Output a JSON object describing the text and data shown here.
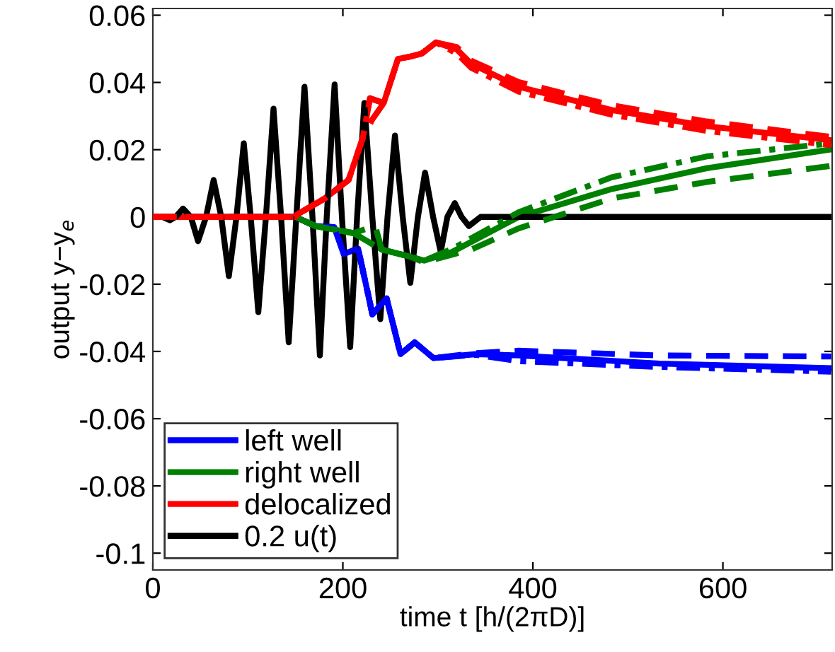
{
  "chart_data": {
    "type": "line",
    "xlabel": "time t [h/(2πD)]",
    "ylabel": "output y−y$_{e}$",
    "xlim": [
      0,
      715
    ],
    "ylim": [
      -0.105,
      0.062
    ],
    "xticks": [
      0,
      200,
      400,
      600
    ],
    "yticks": [
      -0.1,
      -0.08,
      -0.06,
      -0.04,
      -0.02,
      0,
      0.02,
      0.04,
      0.06
    ],
    "grid": false,
    "legend": "bottom left",
    "marker": "none",
    "series": [
      {
        "name": "left well",
        "color": "#0000ff",
        "line_style": "solid",
        "x": [
          0,
          150,
          171,
          191,
          201,
          216,
          228.5,
          231,
          246,
          260.7,
          275.6,
          295.5,
          340,
          385,
          533,
          714
        ],
        "values": [
          0,
          0,
          -0.0027,
          -0.003,
          -0.011,
          -0.0094,
          -0.0255,
          -0.029,
          -0.0242,
          -0.0408,
          -0.0373,
          -0.042,
          -0.0408,
          -0.0412,
          -0.0436,
          -0.045
        ]
      },
      {
        "name": null,
        "color": "#0000ff",
        "line_style": "dashed",
        "x": [
          0,
          150,
          171,
          191,
          201,
          216,
          228.5,
          231,
          246,
          260.7,
          275.6,
          295.5,
          340,
          385,
          533,
          714
        ],
        "values": [
          0,
          0,
          -0.0027,
          -0.003,
          -0.011,
          -0.0094,
          -0.0255,
          -0.029,
          -0.0242,
          -0.0408,
          -0.0373,
          -0.042,
          -0.0405,
          -0.0398,
          -0.0412,
          -0.0415
        ]
      },
      {
        "name": null,
        "color": "#0000ff",
        "line_style": "dashdot",
        "x": [
          0,
          150,
          171,
          191,
          201,
          216,
          228.5,
          231,
          246,
          260.7,
          275.6,
          295.5,
          340,
          385,
          533,
          714
        ],
        "values": [
          0,
          0,
          -0.0027,
          -0.003,
          -0.011,
          -0.0094,
          -0.0255,
          -0.029,
          -0.0242,
          -0.0408,
          -0.0373,
          -0.042,
          -0.041,
          -0.0429,
          -0.0446,
          -0.046
        ]
      },
      {
        "name": "right well",
        "color": "#008000",
        "line_style": "solid",
        "x": [
          0,
          150,
          171,
          211,
          241,
          270.6,
          285.5,
          315,
          385,
          483,
          583,
          714
        ],
        "values": [
          0,
          0,
          -0.0027,
          -0.0048,
          -0.0097,
          -0.0118,
          -0.013,
          -0.0104,
          0,
          0.0083,
          0.0145,
          0.0201
        ]
      },
      {
        "name": null,
        "color": "#008000",
        "line_style": "dashed",
        "x": [
          0,
          150,
          171,
          211,
          234,
          241,
          270.6,
          285.5,
          335,
          385,
          483,
          583,
          714
        ],
        "values": [
          0,
          0,
          -0.0027,
          -0.0048,
          -0.0027,
          -0.0097,
          -0.0118,
          -0.0135,
          -0.0097,
          -0.0034,
          0.0055,
          0.0104,
          0.0152
        ]
      },
      {
        "name": null,
        "color": "#008000",
        "line_style": "dashdot",
        "x": [
          0,
          150,
          171,
          211,
          241,
          270.6,
          285.5,
          315,
          385,
          483,
          583,
          714
        ],
        "values": [
          0,
          0,
          -0.0027,
          -0.0048,
          -0.0097,
          -0.0118,
          -0.013,
          -0.0095,
          0.0014,
          0.0118,
          0.018,
          0.0219
        ]
      },
      {
        "name": "delocalized",
        "color": "#ff0000",
        "line_style": "solid",
        "x": [
          0,
          150,
          151.7,
          181,
          206,
          221,
          228.5,
          243,
          258,
          271,
          283,
          298,
          320,
          335,
          385,
          483,
          583,
          714
        ],
        "values": [
          0,
          0,
          0.0007,
          0.0055,
          0.011,
          0.0235,
          0.0353,
          0.0339,
          0.047,
          0.0477,
          0.0486,
          0.0519,
          0.0498,
          0.0456,
          0.0387,
          0.0318,
          0.027,
          0.0228
        ]
      },
      {
        "name": null,
        "color": "#ff0000",
        "line_style": "dashed",
        "x": [
          0,
          150,
          151.7,
          181,
          206,
          221,
          231,
          243,
          258,
          271,
          283,
          298,
          320,
          335,
          385,
          483,
          583,
          714
        ],
        "values": [
          0,
          0,
          0.0007,
          0.0055,
          0.011,
          0.0235,
          0.029,
          0.0339,
          0.047,
          0.0477,
          0.0486,
          0.0519,
          0.0505,
          0.0465,
          0.0401,
          0.0332,
          0.0284,
          0.0238
        ]
      },
      {
        "name": null,
        "color": "#ff0000",
        "line_style": "dashdot",
        "x": [
          0,
          150,
          151.7,
          181,
          206,
          221,
          228.5,
          243,
          258,
          271,
          283,
          298,
          320,
          335,
          385,
          483,
          583,
          714
        ],
        "values": [
          0,
          0,
          0.0007,
          0.0055,
          0.011,
          0.0235,
          0.0353,
          0.0339,
          0.047,
          0.0477,
          0.0486,
          0.0519,
          0.0486,
          0.0444,
          0.0373,
          0.0304,
          0.0256,
          0.0214
        ]
      },
      {
        "name": "0.2 u(t)",
        "color": "#000000",
        "line_style": "solid",
        "x": [
          0,
          10,
          18,
          24,
          31.7,
          40,
          47.6,
          56,
          64,
          72,
          80,
          88,
          95.7,
          103,
          111,
          119,
          127,
          135,
          143,
          151,
          159.6,
          168,
          175.8,
          183,
          191.3,
          199,
          207.7,
          215,
          222.6,
          231,
          239.4,
          247,
          254.8,
          263,
          271,
          279,
          286.5,
          295,
          303,
          310,
          317.8,
          325,
          332.6,
          345,
          714
        ],
        "values": [
          0,
          0,
          -0.001,
          0,
          0.0025,
          0,
          -0.0072,
          0,
          0.011,
          0,
          -0.0176,
          0,
          0.0219,
          0,
          -0.0283,
          0,
          0.0322,
          0,
          -0.0373,
          0,
          0.0387,
          0,
          -0.0412,
          0,
          0.0394,
          0,
          -0.0387,
          0,
          0.0339,
          0,
          -0.0304,
          0,
          0.0242,
          0,
          -0.0196,
          0,
          0.0132,
          0,
          -0.0104,
          0,
          0.0041,
          0,
          -0.0027,
          0,
          0
        ]
      }
    ]
  }
}
